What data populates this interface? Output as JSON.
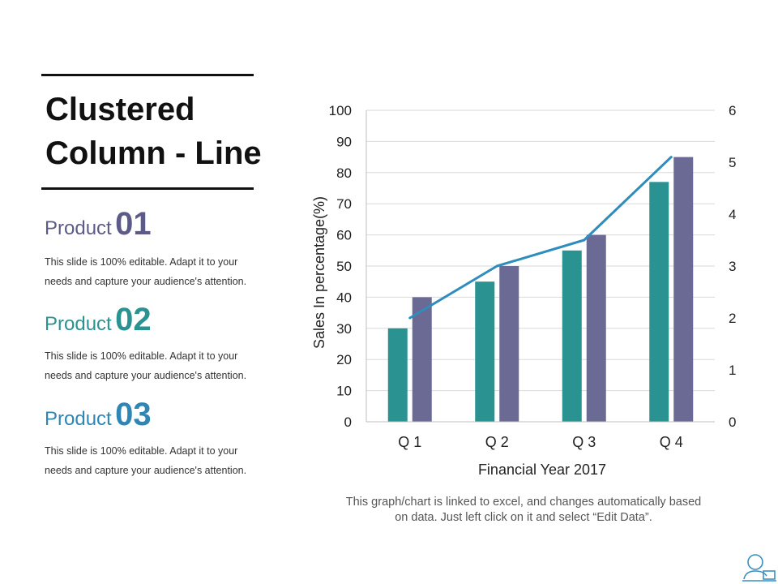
{
  "slide": {
    "title_line1": "Clustered",
    "title_line2": "Column - Line",
    "footnote": "This graph/chart is linked to excel, and changes automatically based on data. Just left click on it and select “Edit Data”."
  },
  "products": [
    {
      "word": "Product",
      "number": "01",
      "color": "#5c5b87",
      "desc": "This slide is 100% editable. Adapt it to your needs and capture your audience's attention."
    },
    {
      "word": "Product",
      "number": "02",
      "color": "#2a9392",
      "desc": "This slide is 100% editable. Adapt it to your needs and capture your audience's attention."
    },
    {
      "word": "Product",
      "number": "03",
      "color": "#2f86b5",
      "desc": "This slide is 100% editable. Adapt it to your needs and capture your audience's attention."
    }
  ],
  "chart_data": {
    "type": "bar",
    "categories": [
      "Q 1",
      "Q 2",
      "Q 3",
      "Q 4"
    ],
    "series": [
      {
        "values": [
          30,
          45,
          55,
          77
        ],
        "color": "#2a9392",
        "kind": "bar"
      },
      {
        "values": [
          40,
          50,
          60,
          85
        ],
        "color": "#6a6a94",
        "kind": "bar"
      },
      {
        "values": [
          2,
          3,
          3.5,
          5.1
        ],
        "color": "#2f8cbc",
        "kind": "line",
        "axis": "secondary"
      }
    ],
    "xlabel": "Financial Year 2017",
    "ylabel": "Sales In percentage(%)",
    "ylim": [
      0,
      100
    ],
    "y2lim": [
      0,
      6
    ],
    "yticks": [
      "0",
      "10",
      "20",
      "30",
      "40",
      "50",
      "60",
      "70",
      "80",
      "90",
      "100"
    ],
    "y2ticks": [
      "0",
      "1",
      "2",
      "3",
      "4",
      "5",
      "6"
    ],
    "grid": true
  }
}
